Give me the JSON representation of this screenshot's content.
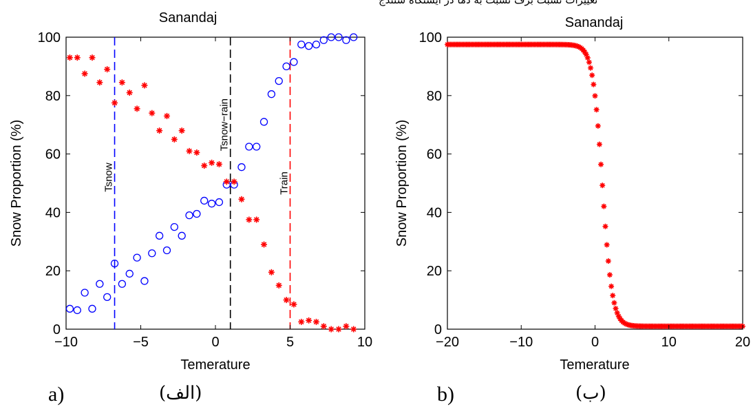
{
  "top_strip_text": "تغییرات نسبت برف نسبت به دما در ایستگاه سنندج",
  "captions": {
    "a_label": "a)",
    "a_arabic": "(الف)",
    "b_label": "b)",
    "b_arabic": "(ب)"
  },
  "colors": {
    "snow_series": "#0000ff",
    "rain_series": "#ff0000",
    "tsnow_line": "#0000ff",
    "tsnowrain_line": "#000000",
    "train_line": "#ff0000"
  },
  "chart_data": [
    {
      "type": "scatter",
      "title": "Sanandaj",
      "xlabel": "Temerature",
      "ylabel": "Snow Proportion (%)",
      "xlim": [
        -10,
        10
      ],
      "ylim": [
        0,
        100
      ],
      "xticks": [
        -10,
        -5,
        0,
        5,
        10
      ],
      "xtick_labels": [
        "−10",
        "−5",
        "0",
        "5",
        "10"
      ],
      "yticks": [
        0,
        20,
        40,
        60,
        80,
        100
      ],
      "ytick_labels": [
        "0",
        "20",
        "40",
        "60",
        "80",
        "100"
      ],
      "grid": false,
      "vlines": [
        {
          "x": -6.75,
          "label": "Tsnow",
          "color": "#0000ff",
          "label_y": 52
        },
        {
          "x": 1.0,
          "label": "Tsnow−rain",
          "color": "#000000",
          "label_y": 70
        },
        {
          "x": 5.0,
          "label": "Train",
          "color": "#ff0000",
          "label_y": 50
        }
      ],
      "series": [
        {
          "marker": "circle",
          "color": "#0000ff",
          "x": [
            -9.75,
            -9.25,
            -8.75,
            -8.25,
            -7.75,
            -7.25,
            -6.75,
            -6.25,
            -5.75,
            -5.25,
            -4.75,
            -4.25,
            -3.75,
            -3.25,
            -2.75,
            -2.25,
            -1.75,
            -1.25,
            -0.75,
            -0.25,
            0.25,
            0.75,
            1.25,
            1.75,
            2.25,
            2.75,
            3.25,
            3.75,
            4.25,
            4.75,
            5.25,
            5.75,
            6.25,
            6.75,
            7.25,
            7.75,
            8.25,
            8.75,
            9.25
          ],
          "y": [
            7,
            6.5,
            12.5,
            7,
            15.5,
            11,
            22.5,
            15.5,
            19,
            24.5,
            16.5,
            26,
            32,
            27,
            35,
            32,
            39,
            39.5,
            44,
            43,
            43.5,
            49.5,
            49.5,
            55.5,
            62.5,
            62.5,
            71,
            80.5,
            85,
            90,
            91.5,
            97.5,
            97,
            97.5,
            99,
            100,
            100,
            99,
            100
          ]
        },
        {
          "marker": "asterisk",
          "color": "#ff0000",
          "x": [
            -9.75,
            -9.25,
            -8.75,
            -8.25,
            -7.75,
            -7.25,
            -6.75,
            -6.25,
            -5.75,
            -5.25,
            -4.75,
            -4.25,
            -3.75,
            -3.25,
            -2.75,
            -2.25,
            -1.75,
            -1.25,
            -0.75,
            -0.25,
            0.25,
            0.75,
            1.25,
            1.75,
            2.25,
            2.75,
            3.25,
            3.75,
            4.25,
            4.75,
            5.25,
            5.75,
            6.25,
            6.75,
            7.25,
            7.75,
            8.25,
            8.75,
            9.25
          ],
          "y": [
            93,
            93,
            87.5,
            93,
            84.5,
            89,
            77.5,
            84.5,
            81,
            75.5,
            83.5,
            74,
            68,
            73,
            65,
            68,
            61,
            60.5,
            56,
            57,
            56.5,
            50.5,
            50.5,
            44.5,
            37.5,
            37.5,
            29,
            19.5,
            15,
            10,
            8.5,
            2.5,
            3,
            2.5,
            1,
            0,
            0,
            1,
            0
          ]
        }
      ]
    },
    {
      "type": "scatter",
      "title": "Sanandaj",
      "xlabel": "Temerature",
      "ylabel": "Snow Proportion (%)",
      "xlim": [
        -20,
        20
      ],
      "ylim": [
        0,
        100
      ],
      "xticks": [
        -20,
        -10,
        0,
        10,
        20
      ],
      "xtick_labels": [
        "−20",
        "−10",
        "0",
        "10",
        "20"
      ],
      "yticks": [
        0,
        20,
        40,
        60,
        80,
        100
      ],
      "ytick_labels": [
        "0",
        "20",
        "40",
        "60",
        "80",
        "100"
      ],
      "grid": false,
      "curve": {
        "marker": "asterisk",
        "color": "#ff0000",
        "x_start": -20,
        "x_end": 20,
        "step": 0.2,
        "upper": 97.5,
        "lower": 1,
        "midpoint": 1.0,
        "slope": 1.5
      }
    }
  ]
}
